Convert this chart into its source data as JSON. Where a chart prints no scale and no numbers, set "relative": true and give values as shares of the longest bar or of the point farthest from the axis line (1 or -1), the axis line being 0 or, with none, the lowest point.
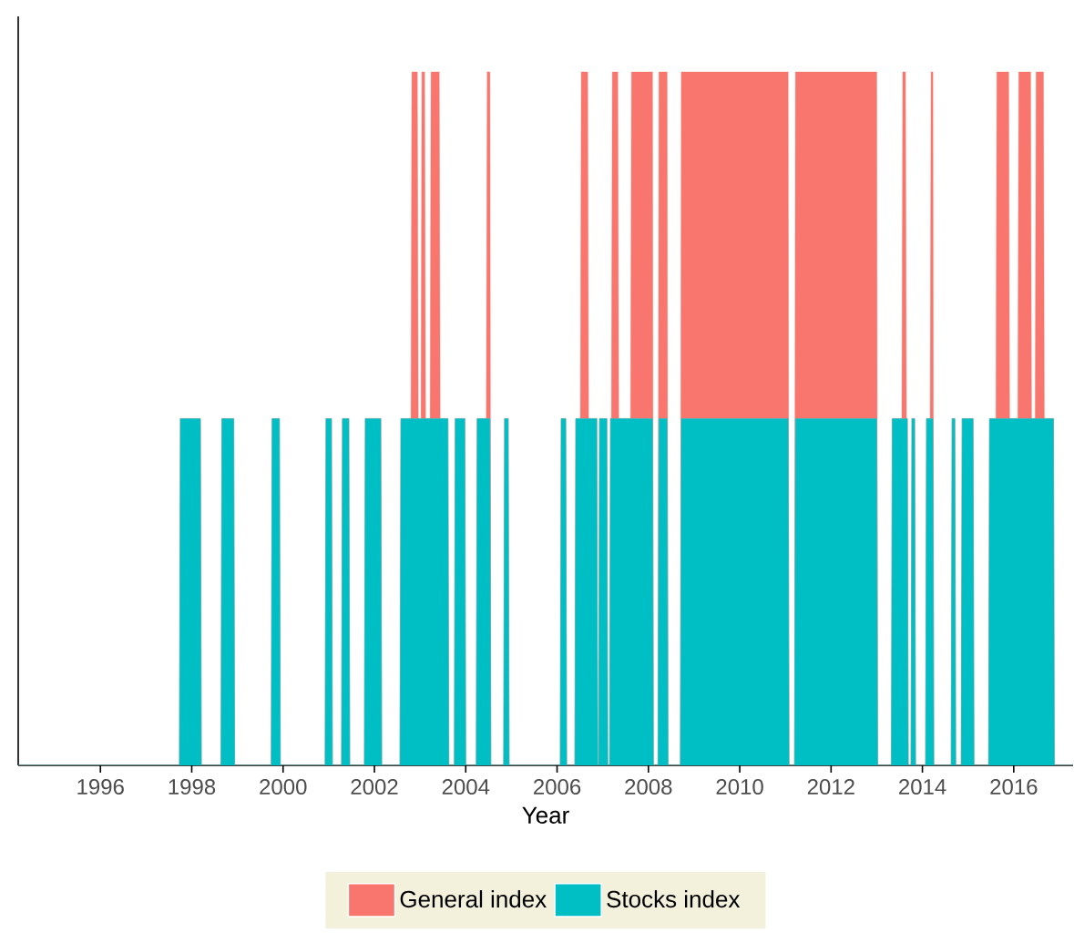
{
  "chart_data": {
    "type": "area",
    "stacked": true,
    "relative": true,
    "xlabel": "Year",
    "legend": "bottom",
    "grid": false,
    "xlim": [
      1994.2,
      2017.3
    ],
    "xticks": [
      1996,
      1998,
      2000,
      2002,
      2004,
      2006,
      2008,
      2010,
      2012,
      2014,
      2016
    ],
    "x": [
      1994.2,
      1997.73,
      1997.75,
      1998.19,
      1998.21,
      1998.64,
      1998.66,
      1998.92,
      1998.94,
      1999.74,
      1999.76,
      1999.92,
      1999.94,
      2000.92,
      2000.94,
      2001.06,
      2001.08,
      2001.28,
      2001.3,
      2001.44,
      2001.46,
      2001.78,
      2001.8,
      2002.14,
      2002.16,
      2002.56,
      2002.58,
      2002.8,
      2002.82,
      2002.94,
      2002.96,
      2003.02,
      2003.04,
      2003.1,
      2003.12,
      2003.22,
      2003.24,
      2003.42,
      2003.44,
      2003.61,
      2003.63,
      2003.75,
      2003.77,
      2003.98,
      2004.0,
      2004.23,
      2004.25,
      2004.45,
      2004.47,
      2004.53,
      2004.55,
      2004.83,
      2004.85,
      2004.93,
      2004.95,
      2006.07,
      2006.09,
      2006.19,
      2006.21,
      2006.39,
      2006.41,
      2006.51,
      2006.53,
      2006.67,
      2006.69,
      2006.87,
      2006.89,
      2006.91,
      2006.93,
      2007.09,
      2007.11,
      2007.15,
      2007.17,
      2007.19,
      2007.21,
      2007.33,
      2007.35,
      2007.61,
      2007.63,
      2008.09,
      2008.11,
      2008.21,
      2008.23,
      2008.41,
      2008.43,
      2008.7,
      2008.72,
      2011.06,
      2011.08,
      2011.2,
      2011.22,
      2013.0,
      2013.02,
      2013.32,
      2013.34,
      2013.55,
      2013.57,
      2013.63,
      2013.65,
      2013.67,
      2013.69,
      2013.75,
      2013.77,
      2013.83,
      2013.85,
      2014.07,
      2014.09,
      2014.17,
      2014.19,
      2014.23,
      2014.25,
      2014.63,
      2014.65,
      2014.71,
      2014.73,
      2014.85,
      2014.87,
      2015.11,
      2015.13,
      2015.45,
      2015.47,
      2015.61,
      2015.63,
      2015.89,
      2015.91,
      2016.09,
      2016.11,
      2016.37,
      2016.39,
      2016.47,
      2016.49,
      2016.65,
      2016.67,
      2016.87,
      2016.89,
      2017.3
    ],
    "series": [
      {
        "name": "Stocks index",
        "color": "#00bfc4",
        "values": [
          0,
          0,
          0.5,
          0.5,
          0,
          0,
          0.5,
          0.5,
          0,
          0,
          0.5,
          0.5,
          0,
          0,
          0.5,
          0.5,
          0,
          0,
          0.5,
          0.5,
          0,
          0,
          0.5,
          0.5,
          0,
          0,
          0.5,
          0.5,
          0.5,
          0.5,
          0.5,
          0.5,
          0.5,
          0.5,
          0.5,
          0.5,
          0.5,
          0.5,
          0.5,
          0.5,
          0,
          0,
          0.5,
          0.5,
          0,
          0,
          0.5,
          0.5,
          0.5,
          0.5,
          0,
          0,
          0.5,
          0.5,
          0,
          0,
          0.5,
          0.5,
          0,
          0,
          0.5,
          0.5,
          0.5,
          0.5,
          0.5,
          0.5,
          0,
          0,
          0.5,
          0.5,
          0,
          0,
          0.5,
          0.5,
          0.5,
          0.5,
          0.5,
          0.5,
          0.5,
          0.5,
          0,
          0,
          0.5,
          0.5,
          0,
          0,
          0.5,
          0.5,
          0,
          0,
          0.5,
          0.5,
          0,
          0,
          0.5,
          0.5,
          0.5,
          0.5,
          0.5,
          0.5,
          0,
          0,
          0.5,
          0.5,
          0,
          0,
          0.5,
          0.5,
          0.5,
          0.5,
          0,
          0,
          0.5,
          0.5,
          0,
          0,
          0.5,
          0.5,
          0,
          0,
          0.5,
          0.5,
          0.5,
          0.5,
          0.5,
          0.5,
          0.5,
          0.5,
          0.5,
          0.5,
          0.5,
          0.5,
          0.5,
          0.5,
          0,
          0
        ]
      },
      {
        "name": "General index",
        "color": "#f8766d",
        "values": [
          0,
          0,
          0,
          0,
          0,
          0,
          0,
          0,
          0,
          0,
          0,
          0,
          0,
          0,
          0,
          0,
          0,
          0,
          0,
          0,
          0,
          0,
          0,
          0,
          0,
          0,
          0,
          0,
          0.5,
          0.5,
          0,
          0,
          0.5,
          0.5,
          0,
          0,
          0.5,
          0.5,
          0,
          0,
          0,
          0,
          0,
          0,
          0,
          0,
          0,
          0,
          0.5,
          0.5,
          0,
          0,
          0,
          0,
          0,
          0,
          0,
          0,
          0,
          0,
          0,
          0,
          0.5,
          0.5,
          0,
          0,
          0,
          0,
          0,
          0,
          0,
          0,
          0,
          0,
          0.5,
          0.5,
          0,
          0,
          0.5,
          0.5,
          0,
          0,
          0.5,
          0.5,
          0,
          0,
          0.5,
          0.5,
          0,
          0,
          0.5,
          0.5,
          0,
          0,
          0,
          0,
          0.5,
          0.5,
          0,
          0,
          0,
          0,
          0,
          0,
          0,
          0,
          0,
          0,
          0.5,
          0.5,
          0,
          0,
          0,
          0,
          0,
          0,
          0,
          0,
          0,
          0,
          0,
          0,
          0.5,
          0.5,
          0,
          0,
          0.5,
          0.5,
          0,
          0,
          0.5,
          0.5,
          0,
          0,
          0,
          0
        ]
      }
    ]
  }
}
